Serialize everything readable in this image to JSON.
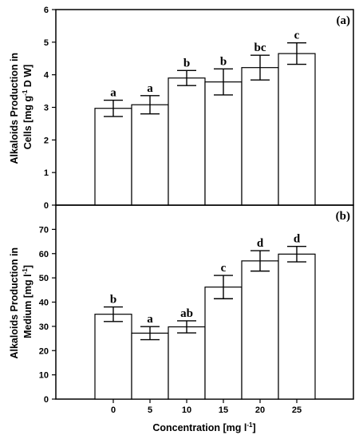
{
  "chart_data": [
    {
      "type": "bar",
      "panel_label": "(a)",
      "categories": [
        "0",
        "5",
        "10",
        "15",
        "20",
        "25"
      ],
      "values": [
        2.97,
        3.08,
        3.9,
        3.78,
        4.22,
        4.65
      ],
      "errors": [
        0.25,
        0.28,
        0.23,
        0.4,
        0.38,
        0.33
      ],
      "significance": [
        "a",
        "a",
        "b",
        "b",
        "bc",
        "c"
      ],
      "ylabel_line1": "Alkaloids Production in",
      "ylabel_line2": "Cells [mg g",
      "ylabel_line2_sup": "-1",
      "ylabel_line2_end": " D W]",
      "ylim": [
        0,
        6
      ],
      "yticks": [
        "0",
        "1",
        "2",
        "3",
        "4",
        "5",
        "6"
      ],
      "grid": false
    },
    {
      "type": "bar",
      "panel_label": "(b)",
      "categories": [
        "0",
        "5",
        "10",
        "15",
        "20",
        "25"
      ],
      "values": [
        35,
        27.2,
        29.8,
        46.2,
        57,
        59.8
      ],
      "errors": [
        3,
        2.7,
        2.5,
        4.8,
        4.2,
        3.2
      ],
      "significance": [
        "b",
        "a",
        "ab",
        "c",
        "d",
        "d"
      ],
      "ylabel_line1": "Alkaloids Production in",
      "ylabel_line2": "Medium [mg l",
      "ylabel_line2_sup": "-1",
      "ylabel_line2_end": "]",
      "ylim": [
        0,
        80
      ],
      "yticks": [
        "0",
        "10",
        "20",
        "30",
        "40",
        "50",
        "60",
        "70"
      ],
      "grid": false
    }
  ],
  "xaxis": {
    "label": "Concentration [mg l",
    "label_sup": "-1",
    "label_end": "]",
    "tick_labels": [
      "0",
      "5",
      "10",
      "15",
      "20",
      "25"
    ]
  }
}
